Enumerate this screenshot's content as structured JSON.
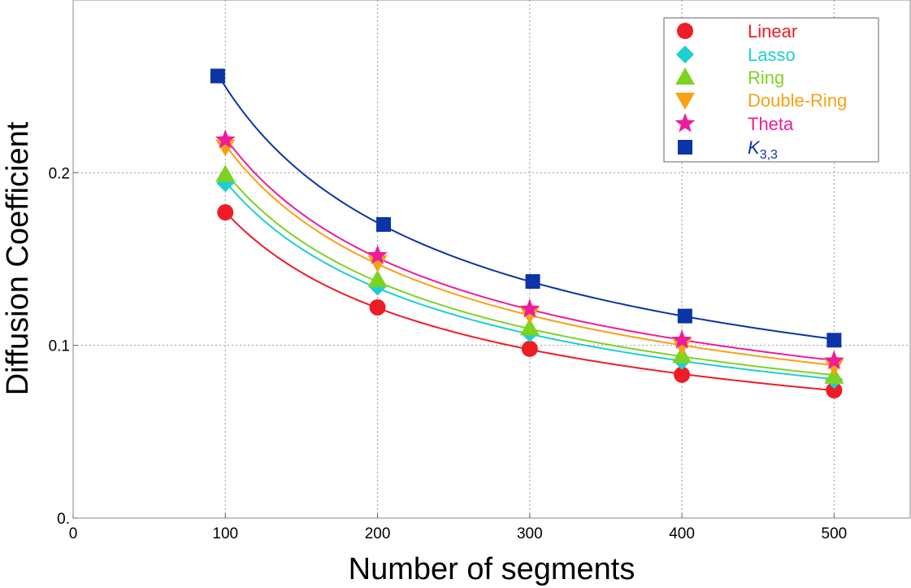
{
  "chart_data": {
    "type": "scatter",
    "title": "",
    "xlabel": "Number of segments",
    "ylabel": "Diffusion Coefficient",
    "xlim": [
      0,
      550
    ],
    "ylim": [
      0,
      0.3
    ],
    "xticks": [
      0,
      100,
      200,
      300,
      400,
      500
    ],
    "xtick_labels": [
      "0",
      "100",
      "200",
      "300",
      "400",
      "500"
    ],
    "yticks": [
      0,
      0.1,
      0.2
    ],
    "ytick_labels": [
      "0.",
      "0.1",
      "0.2"
    ],
    "grid": true,
    "legend_position": "top-right",
    "fit": "power-law curve through each series",
    "series": [
      {
        "name": "Linear",
        "marker": "circle",
        "color": "#ee1c25",
        "x": [
          100,
          200,
          300,
          400,
          500
        ],
        "y": [
          0.177,
          0.122,
          0.098,
          0.083,
          0.074
        ]
      },
      {
        "name": "Lasso",
        "marker": "diamond",
        "color": "#1ecfd1",
        "x": [
          100,
          200,
          300,
          400,
          500
        ],
        "y": [
          0.194,
          0.134,
          0.107,
          0.091,
          0.08
        ]
      },
      {
        "name": "Ring",
        "marker": "triangle-up",
        "color": "#7ed321",
        "x": [
          100,
          200,
          300,
          400,
          500
        ],
        "y": [
          0.199,
          0.138,
          0.11,
          0.094,
          0.082
        ]
      },
      {
        "name": "Double-Ring",
        "marker": "triangle-down",
        "color": "#f7a114",
        "x": [
          100,
          200,
          300,
          400,
          500
        ],
        "y": [
          0.215,
          0.148,
          0.118,
          0.1,
          0.088
        ]
      },
      {
        "name": "Theta",
        "marker": "star",
        "color": "#ee1c9c",
        "x": [
          100,
          200,
          300,
          400,
          500
        ],
        "y": [
          0.219,
          0.152,
          0.121,
          0.103,
          0.091
        ]
      },
      {
        "name": "K",
        "name_subscript": "3,3",
        "marker": "square",
        "color": "#0b35a6",
        "x": [
          95,
          204,
          302,
          402,
          500
        ],
        "y": [
          0.256,
          0.17,
          0.137,
          0.117,
          0.103
        ]
      }
    ]
  }
}
